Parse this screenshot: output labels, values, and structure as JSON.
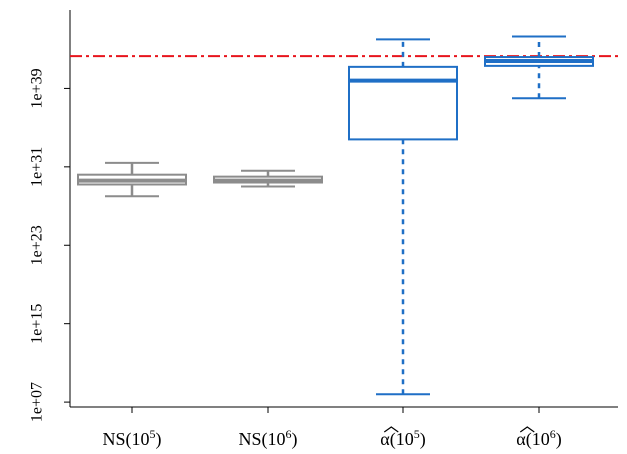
{
  "chart_data": {
    "type": "box",
    "y_scale": "log10",
    "ylim": [
      6.5,
      47
    ],
    "y_ticks": [
      {
        "exp": 7,
        "label": "1e+07"
      },
      {
        "exp": 15,
        "label": "1e+15"
      },
      {
        "exp": 23,
        "label": "1e+23"
      },
      {
        "exp": 31,
        "label": "1e+31"
      },
      {
        "exp": 39,
        "label": "1e+39"
      }
    ],
    "reference_line": {
      "exp": 42.3,
      "style": "dash-dot",
      "color": "#e8141c"
    },
    "categories": [
      {
        "base": "NS(10",
        "sup": "5",
        "close": ")",
        "hat": false
      },
      {
        "base": "NS(10",
        "sup": "6",
        "close": ")",
        "hat": false
      },
      {
        "base": "α(10",
        "sup": "5",
        "close": ")",
        "hat": true
      },
      {
        "base": "α(10",
        "sup": "6",
        "close": ")",
        "hat": true
      }
    ],
    "boxes": [
      {
        "whisker_low": 28.0,
        "q1": 29.2,
        "median": 29.6,
        "q3": 30.2,
        "whisker_high": 31.4,
        "color": "#8c8c8c",
        "whisker_dash": false
      },
      {
        "whisker_low": 29.0,
        "q1": 29.4,
        "median": 29.6,
        "q3": 30.0,
        "whisker_high": 30.6,
        "color": "#8c8c8c",
        "whisker_dash": false
      },
      {
        "whisker_low": 7.8,
        "q1": 33.8,
        "median": 39.8,
        "q3": 41.2,
        "whisker_high": 44.0,
        "color": "#1f6fc6",
        "whisker_dash": true
      },
      {
        "whisker_low": 38.0,
        "q1": 41.3,
        "median": 41.8,
        "q3": 42.2,
        "whisker_high": 44.3,
        "color": "#1f6fc6",
        "whisker_dash": true
      }
    ]
  }
}
